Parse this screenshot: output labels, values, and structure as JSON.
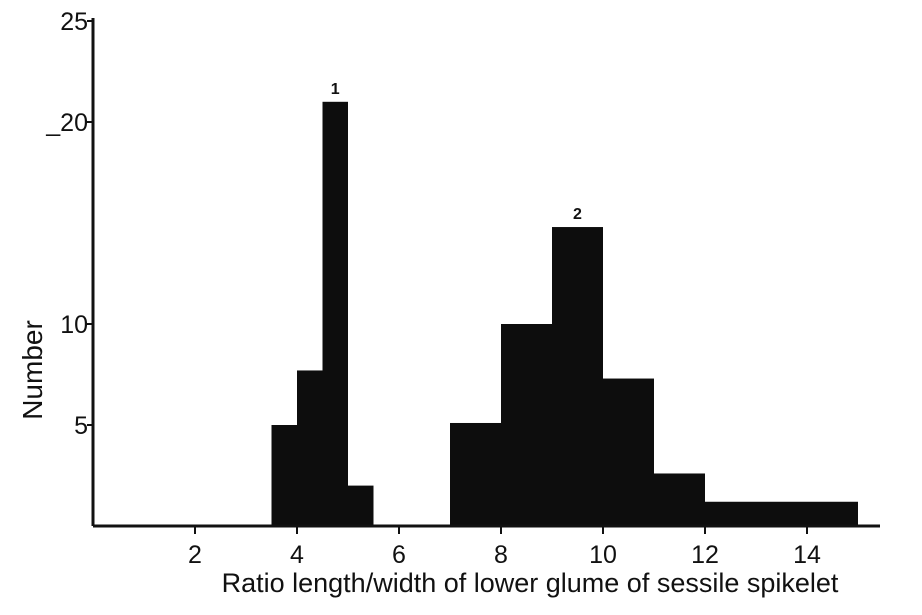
{
  "chart_data": {
    "type": "bar",
    "xlabel": "Ratio  length/width  of  lower glume of sessile spikelet",
    "ylabel": "Number",
    "xlim": [
      0,
      15
    ],
    "ylim": [
      0,
      25
    ],
    "x_ticks": [
      "2",
      "4",
      "6",
      "8",
      "10",
      "12",
      "14"
    ],
    "y_ticks": [
      "5",
      "10",
      "_20",
      "25"
    ],
    "y_tick_values": [
      5,
      10,
      20,
      25
    ],
    "x_tick_values": [
      2,
      4,
      6,
      8,
      10,
      12,
      14
    ],
    "grid": false,
    "annotations": [
      {
        "text": "1",
        "x": 4.75,
        "y": 21
      },
      {
        "text": "2",
        "x": 9.5,
        "y": 14.8
      }
    ],
    "bars": [
      {
        "x0": 3.5,
        "x1": 4.0,
        "value": 5
      },
      {
        "x0": 4.0,
        "x1": 4.5,
        "value": 7.7
      },
      {
        "x0": 4.5,
        "x1": 5.0,
        "value": 21
      },
      {
        "x0": 5.0,
        "x1": 5.5,
        "value": 2
      },
      {
        "x0": 7.0,
        "x1": 8.0,
        "value": 5.1
      },
      {
        "x0": 8.0,
        "x1": 9.0,
        "value": 10
      },
      {
        "x0": 9.0,
        "x1": 10.0,
        "value": 14.8
      },
      {
        "x0": 10.0,
        "x1": 11.0,
        "value": 7.3
      },
      {
        "x0": 11.0,
        "x1": 12.0,
        "value": 2.6
      },
      {
        "x0": 12.0,
        "x1": 15.0,
        "value": 1.2
      }
    ]
  }
}
